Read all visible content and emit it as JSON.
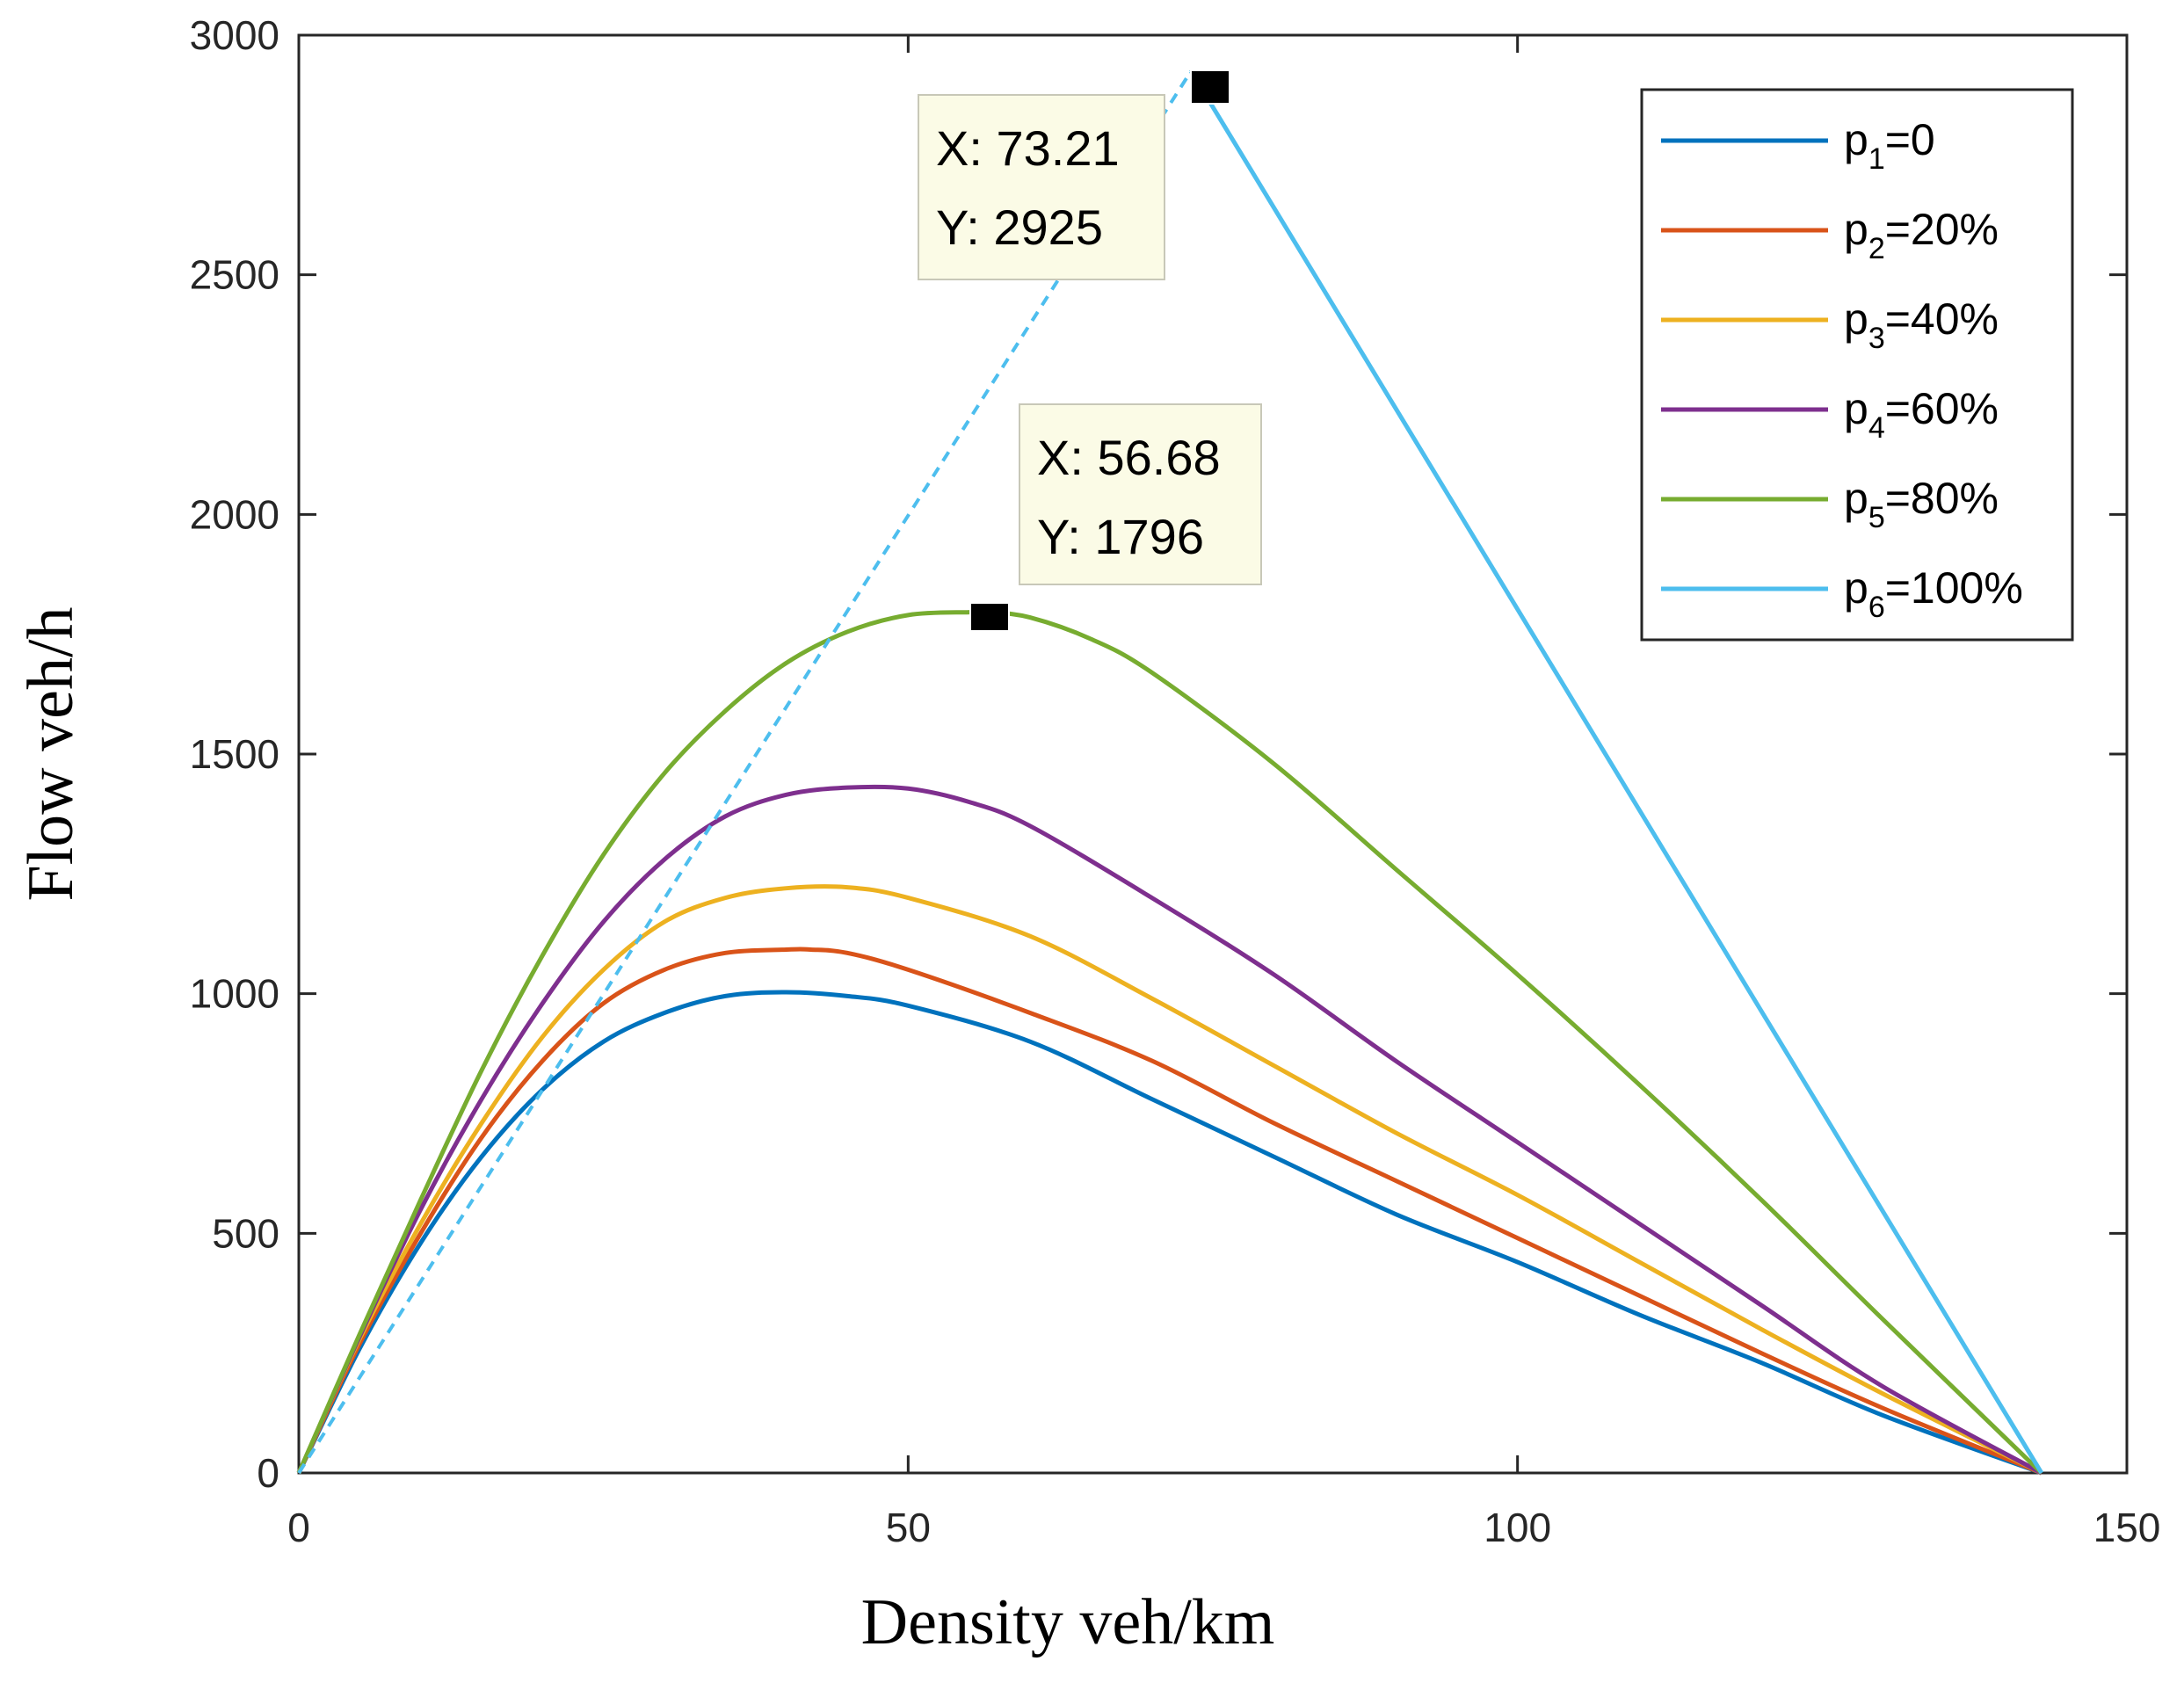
{
  "chart_data": {
    "type": "line",
    "title": "",
    "xlabel": "Density veh/km",
    "ylabel": "Flow veh/h",
    "xlim": [
      0,
      150
    ],
    "ylim": [
      0,
      3000
    ],
    "xticks": [
      0,
      50,
      100,
      150
    ],
    "yticks": [
      0,
      500,
      1000,
      1500,
      2000,
      2500,
      3000
    ],
    "grid": false,
    "legend_position": "top-right",
    "jam_density": 143,
    "series": [
      {
        "name": "p1=0",
        "base": "p",
        "sub": "1",
        "suffix": "=0",
        "color": "#0072BD",
        "x": [
          0,
          5,
          10,
          15,
          20,
          25,
          30,
          35,
          40,
          45,
          50,
          60,
          70,
          80,
          90,
          100,
          110,
          120,
          130,
          143
        ],
        "y": [
          0,
          260,
          480,
          660,
          800,
          900,
          960,
          995,
          1003,
          995,
          975,
          900,
          780,
          660,
          540,
          440,
          330,
          230,
          120,
          0
        ]
      },
      {
        "name": "p2=20%",
        "base": "p",
        "sub": "2",
        "suffix": "=20%",
        "color": "#D95319",
        "x": [
          0,
          5,
          10,
          15,
          20,
          25,
          30,
          35,
          40,
          42,
          45,
          50,
          60,
          70,
          80,
          90,
          100,
          110,
          120,
          130,
          143
        ],
        "y": [
          0,
          270,
          500,
          700,
          860,
          980,
          1050,
          1085,
          1092,
          1092,
          1085,
          1050,
          960,
          860,
          730,
          610,
          490,
          370,
          250,
          135,
          0
        ]
      },
      {
        "name": "p3=40%",
        "base": "p",
        "sub": "3",
        "suffix": "=40%",
        "color": "#EDB120",
        "x": [
          0,
          5,
          10,
          15,
          20,
          25,
          30,
          35,
          40,
          45,
          50,
          60,
          70,
          80,
          90,
          100,
          110,
          120,
          130,
          143
        ],
        "y": [
          0,
          280,
          520,
          730,
          910,
          1050,
          1150,
          1200,
          1220,
          1222,
          1200,
          1120,
          990,
          850,
          710,
          580,
          440,
          300,
          165,
          0
        ]
      },
      {
        "name": "p4=60%",
        "base": "p",
        "sub": "4",
        "suffix": "=60%",
        "color": "#7E2F8E",
        "x": [
          0,
          5,
          10,
          15,
          20,
          25,
          30,
          35,
          40,
          45,
          50,
          55,
          60,
          70,
          80,
          90,
          100,
          110,
          120,
          130,
          143
        ],
        "y": [
          0,
          285,
          550,
          780,
          980,
          1150,
          1280,
          1370,
          1415,
          1430,
          1428,
          1400,
          1350,
          1200,
          1040,
          860,
          690,
          520,
          350,
          180,
          0
        ]
      },
      {
        "name": "p5=80%",
        "base": "p",
        "sub": "5",
        "suffix": "=80%",
        "color": "#77AC30",
        "x": [
          0,
          5,
          10,
          15,
          20,
          25,
          30,
          35,
          40,
          45,
          50,
          55,
          56.68,
          60,
          65,
          70,
          80,
          90,
          100,
          110,
          120,
          130,
          143
        ],
        "y": [
          0,
          290,
          570,
          840,
          1080,
          1290,
          1460,
          1590,
          1690,
          1755,
          1790,
          1796,
          1796,
          1785,
          1740,
          1670,
          1480,
          1260,
          1040,
          810,
          570,
          320,
          0
        ]
      },
      {
        "name": "p6=100%",
        "base": "p",
        "sub": "6",
        "suffix": "=100%",
        "color": "#4DBEEE",
        "x": [
          0,
          73.21,
          143
        ],
        "y": [
          0,
          2925,
          0
        ],
        "dashed_segment": [
          0,
          1
        ]
      }
    ],
    "annotations": [
      {
        "x": 73.21,
        "y": 2925,
        "x_label": "X: 73.21",
        "y_label": "Y: 2925"
      },
      {
        "x": 56.68,
        "y": 1796,
        "x_label": "X: 56.68",
        "y_label": "Y: 1796"
      }
    ]
  }
}
